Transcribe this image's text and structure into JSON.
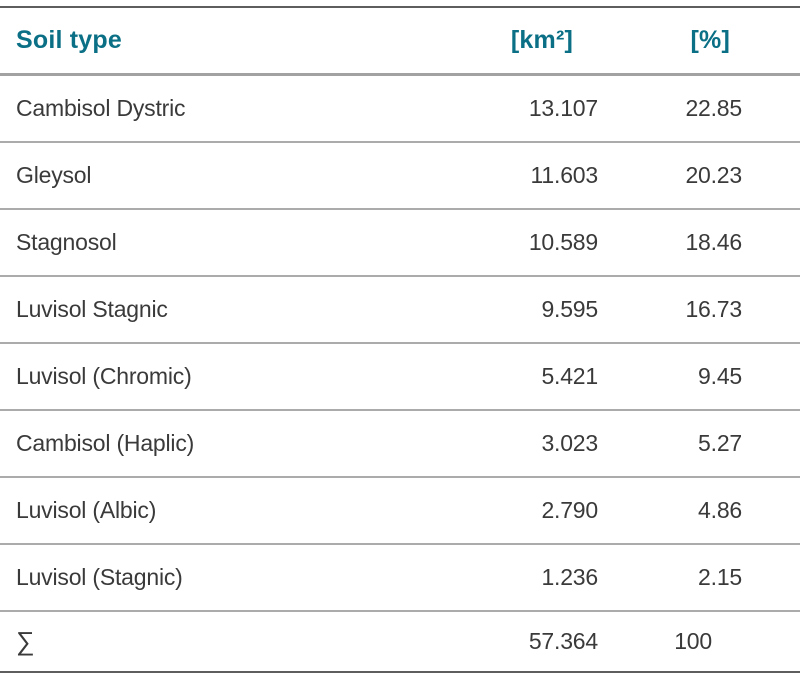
{
  "table": {
    "headers": {
      "soil_type": "Soil type",
      "area": "[km²]",
      "percent": "[%]"
    },
    "rows": [
      {
        "soil_type": "Cambisol Dystric",
        "area": "13.107",
        "percent": "22.85"
      },
      {
        "soil_type": "Gleysol",
        "area": "11.603",
        "percent": "20.23"
      },
      {
        "soil_type": "Stagnosol",
        "area": "10.589",
        "percent": "18.46"
      },
      {
        "soil_type": "Luvisol Stagnic",
        "area": "9.595",
        "percent": "16.73"
      },
      {
        "soil_type": "Luvisol (Chromic)",
        "area": "5.421",
        "percent": "9.45"
      },
      {
        "soil_type": "Cambisol (Haplic)",
        "area": "3.023",
        "percent": "5.27"
      },
      {
        "soil_type": "Luvisol (Albic)",
        "area": "2.790",
        "percent": "4.86"
      },
      {
        "soil_type": "Luvisol (Stagnic)",
        "area": "1.236",
        "percent": "2.15"
      }
    ],
    "sum_row": {
      "soil_type": "∑",
      "area": "57.364",
      "percent": "100"
    }
  },
  "colors": {
    "header_text": "#0b7086",
    "body_text": "#3a3a3a",
    "strong_rule": "#5e5e5e",
    "header_rule": "#a2a2a2",
    "row_rule": "#ababab",
    "background": "#ffffff"
  }
}
